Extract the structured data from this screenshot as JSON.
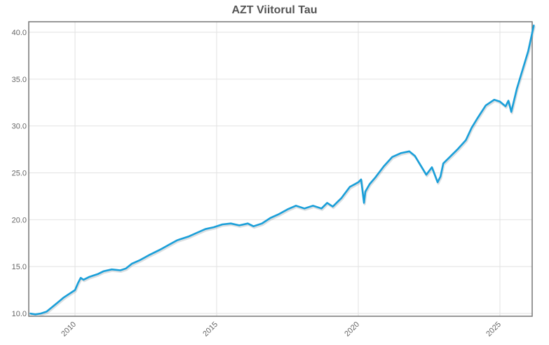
{
  "chart": {
    "title": "AZT Viitorul Tau",
    "line_color": "#1a9fd9",
    "grid_color": "#e2e2e2",
    "frame_color": "#777777"
  },
  "chart_data": {
    "type": "line",
    "title": "AZT Viitorul Tau",
    "xlabel": "",
    "ylabel": "",
    "xlim": [
      2008.4,
      2026.2
    ],
    "ylim": [
      10.0,
      41.1
    ],
    "grid": true,
    "legend": null,
    "x_ticks": [
      "2010",
      "2015",
      "2020",
      "2025"
    ],
    "y_ticks": [
      "10.0",
      "15.0",
      "20.0",
      "25.0",
      "30.0",
      "35.0",
      "40.0"
    ],
    "series": [
      {
        "name": "AZT Viitorul Tau",
        "x": [
          2008.4,
          2008.6,
          2008.8,
          2009.0,
          2009.2,
          2009.4,
          2009.6,
          2009.8,
          2010.0,
          2010.1,
          2010.2,
          2010.3,
          2010.5,
          2010.8,
          2011.0,
          2011.3,
          2011.6,
          2011.8,
          2012.0,
          2012.3,
          2012.6,
          2013.0,
          2013.3,
          2013.6,
          2014.0,
          2014.3,
          2014.6,
          2014.9,
          2015.2,
          2015.5,
          2015.8,
          2016.1,
          2016.3,
          2016.6,
          2016.9,
          2017.2,
          2017.5,
          2017.8,
          2018.1,
          2018.4,
          2018.7,
          2018.9,
          2019.1,
          2019.4,
          2019.7,
          2020.0,
          2020.1,
          2020.2,
          2020.25,
          2020.4,
          2020.6,
          2020.9,
          2021.2,
          2021.5,
          2021.8,
          2022.0,
          2022.2,
          2022.4,
          2022.6,
          2022.8,
          2022.9,
          2023.0,
          2023.2,
          2023.5,
          2023.8,
          2024.0,
          2024.2,
          2024.5,
          2024.8,
          2025.0,
          2025.2,
          2025.3,
          2025.4,
          2025.6,
          2025.8,
          2026.0,
          2026.2
        ],
        "values": [
          10.0,
          9.9,
          10.0,
          10.2,
          10.7,
          11.2,
          11.7,
          12.1,
          12.5,
          13.2,
          13.8,
          13.6,
          13.9,
          14.2,
          14.5,
          14.7,
          14.6,
          14.8,
          15.3,
          15.7,
          16.2,
          16.8,
          17.3,
          17.8,
          18.2,
          18.6,
          19.0,
          19.2,
          19.5,
          19.6,
          19.4,
          19.6,
          19.3,
          19.6,
          20.2,
          20.6,
          21.1,
          21.5,
          21.2,
          21.5,
          21.2,
          21.8,
          21.4,
          22.3,
          23.5,
          24.0,
          24.3,
          21.8,
          23.0,
          23.8,
          24.5,
          25.7,
          26.7,
          27.1,
          27.3,
          26.8,
          25.8,
          24.8,
          25.6,
          24.0,
          24.6,
          26.0,
          26.6,
          27.5,
          28.5,
          29.8,
          30.8,
          32.2,
          32.8,
          32.6,
          32.1,
          32.7,
          31.5,
          34.0,
          36.0,
          38.0,
          40.8
        ]
      }
    ]
  }
}
